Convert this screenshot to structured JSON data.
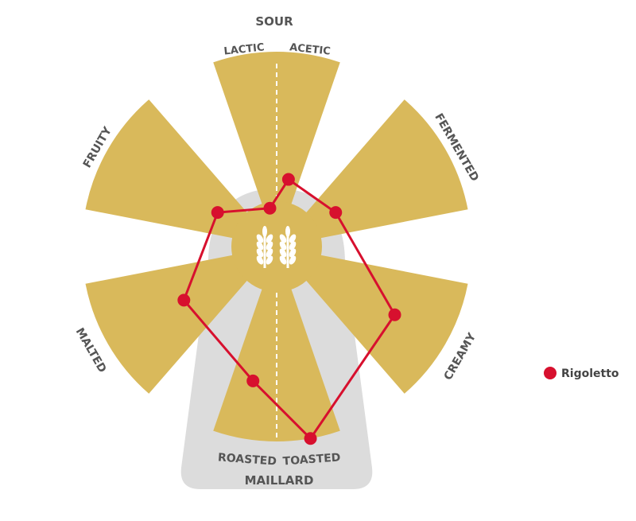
{
  "chart_data": {
    "type": "radar",
    "groups": [
      {
        "name": "SOUR",
        "axes": [
          "LACTIC",
          "ACETIC"
        ]
      },
      {
        "name": "MAILLARD",
        "axes": [
          "ROASTED",
          "TOASTED"
        ]
      }
    ],
    "axes": [
      "LACTIC",
      "ACETIC",
      "FERMENTED",
      "CREAMY",
      "TOASTED",
      "ROASTED",
      "MALTED",
      "FRUITY"
    ],
    "range": [
      0,
      10
    ],
    "series": [
      {
        "name": "Rigoletto",
        "color": "#D7102E",
        "values": [
          2,
          3.5,
          3.5,
          7,
          10,
          7,
          5.5,
          3.5
        ]
      }
    ],
    "legend": "right",
    "colors": {
      "blade": "#D9B95B",
      "bottle": "#DCDCDC",
      "text": "#555555"
    },
    "center_icon": "wheat-icon"
  }
}
